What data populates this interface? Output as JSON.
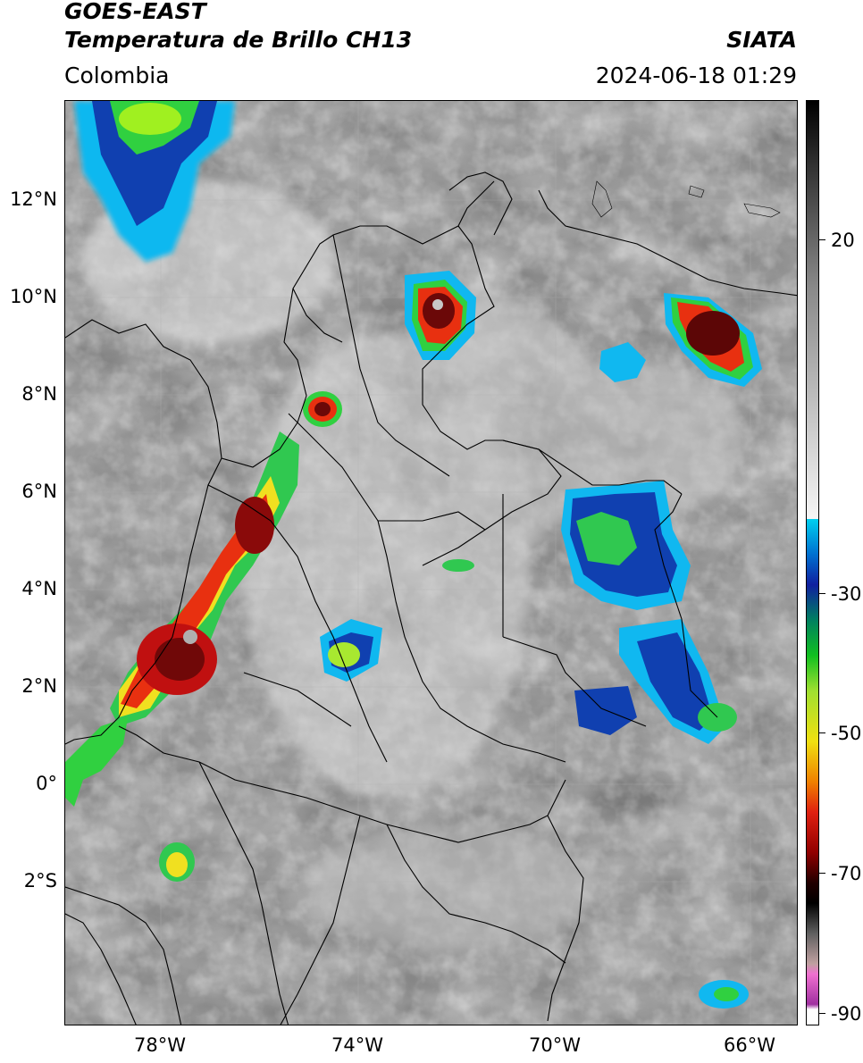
{
  "header": {
    "line1": "GOES-EAST",
    "line2": "Temperatura de Brillo CH13",
    "region": "Colombia",
    "org": "SIATA",
    "datetime": "2024-06-18 01:29"
  },
  "colors": {
    "cold_core": "#8b0000",
    "red": "#e02010",
    "yellow": "#f0e020",
    "green": "#30d040",
    "blue": "#1030a0",
    "cyan": "#10c0f0",
    "gray_bg": "#7a7a7a"
  },
  "axes": {
    "lat_labels": [
      "12°N",
      "10°N",
      "8°N",
      "6°N",
      "4°N",
      "2°N",
      "0°",
      "2°S"
    ],
    "lon_labels": [
      "78°W",
      "74°W",
      "70°W",
      "66°W"
    ]
  },
  "colorbar": {
    "ticks": [
      "20",
      "-30",
      "-50",
      "-70",
      "-90"
    ]
  }
}
